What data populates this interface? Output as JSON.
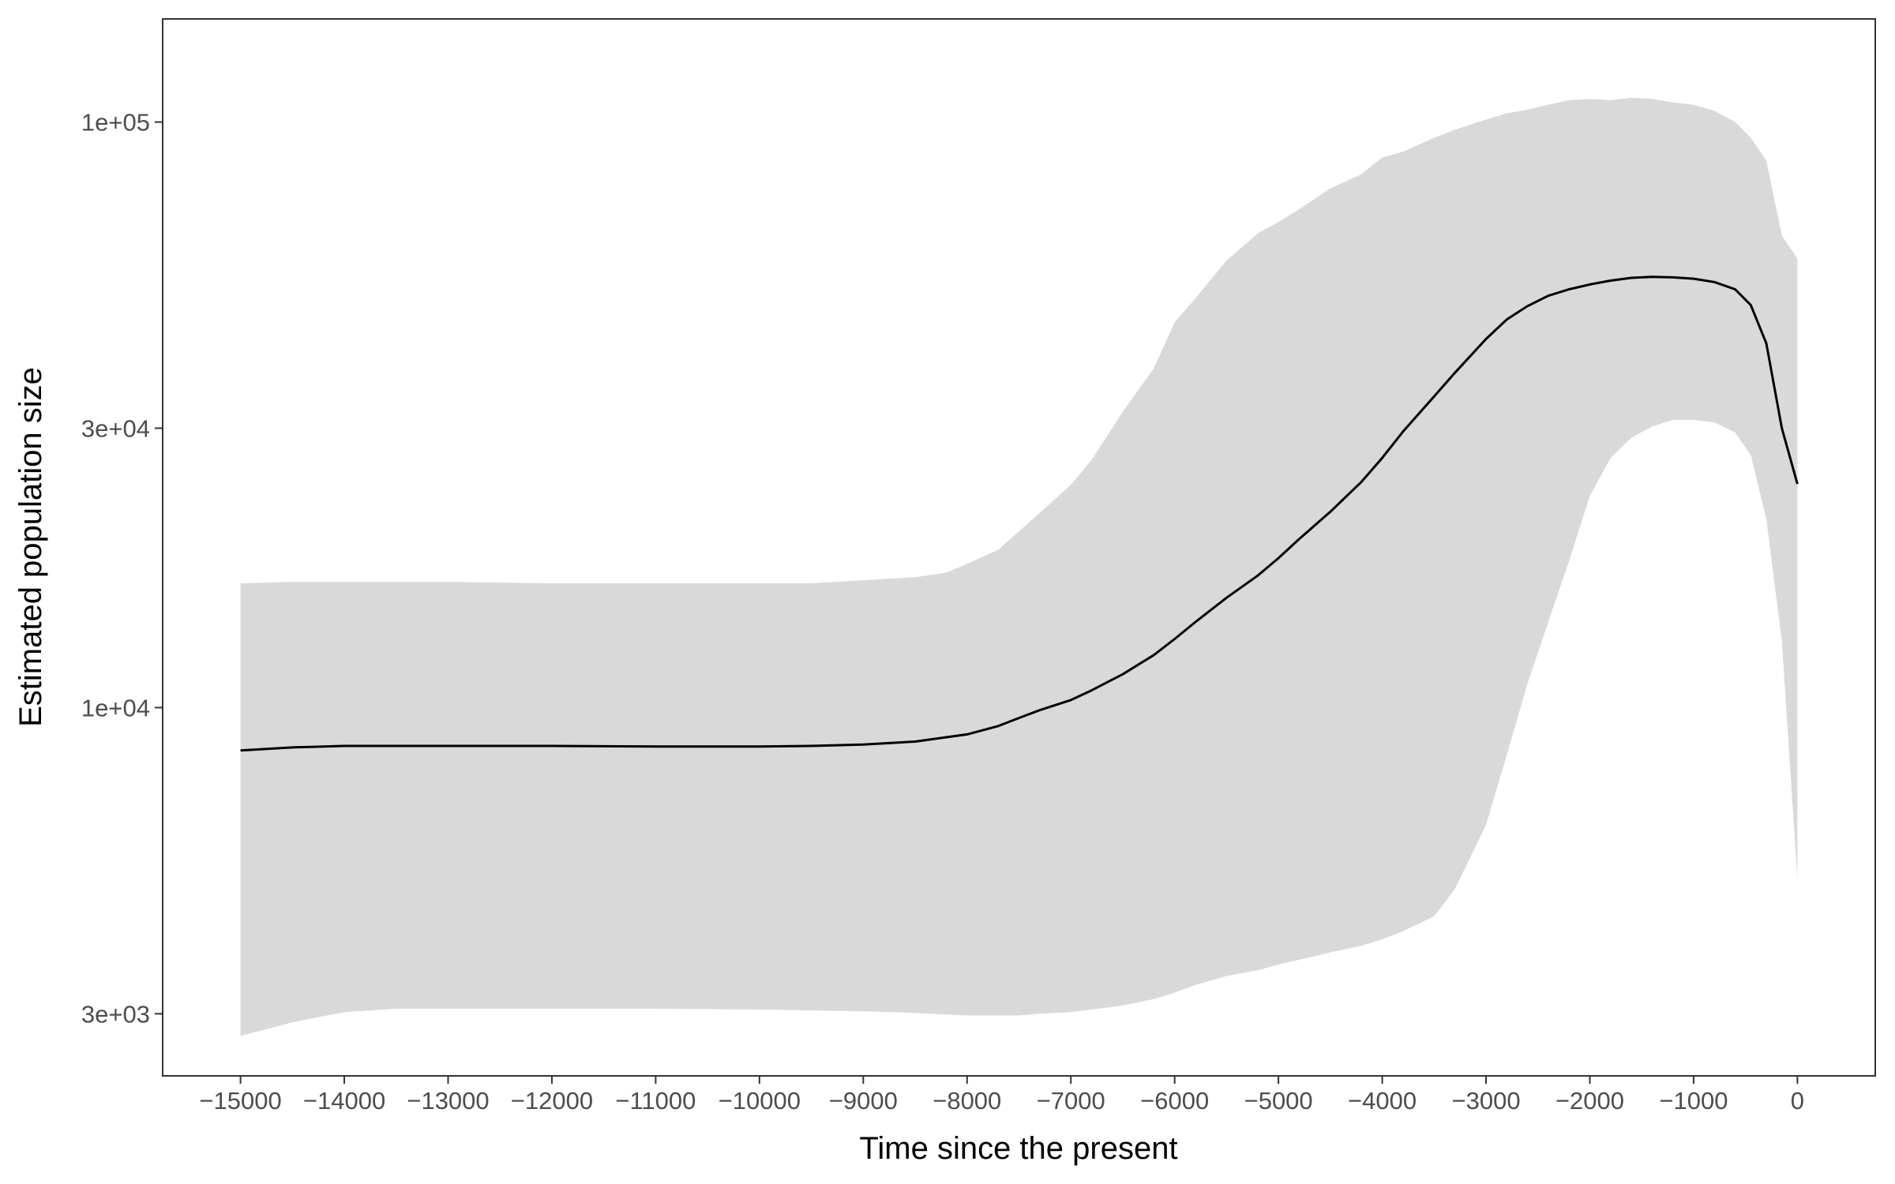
{
  "chart_data": {
    "type": "area",
    "title": "",
    "xlabel": "Time since the present",
    "ylabel": "Estimated population size",
    "xlim": [
      -15750,
      750
    ],
    "ylim": [
      2350,
      150000
    ],
    "yscale": "log",
    "grid": false,
    "legend": "none",
    "x_ticks": [
      -15000,
      -14000,
      -13000,
      -12000,
      -11000,
      -10000,
      -9000,
      -8000,
      -7000,
      -6000,
      -5000,
      -4000,
      -3000,
      -2000,
      -1000,
      0
    ],
    "x_tick_labels": [
      "−15000",
      "−14000",
      "−13000",
      "−12000",
      "−11000",
      "−10000",
      "−9000",
      "−8000",
      "−7000",
      "−6000",
      "−5000",
      "−4000",
      "−3000",
      "−2000",
      "−1000",
      "0"
    ],
    "y_ticks": [
      3000,
      10000,
      30000,
      100000
    ],
    "y_tick_labels": [
      "3e+03",
      "1e+04",
      "3e+04",
      "1e+05"
    ],
    "colors": {
      "band": "#d9d9d9",
      "line": "#000000",
      "frame": "#333333",
      "tick_text": "#4d4d4d"
    },
    "x": [
      -15000,
      -14500,
      -14000,
      -13500,
      -13000,
      -12000,
      -11000,
      -10000,
      -9500,
      -9000,
      -8500,
      -8200,
      -8000,
      -7700,
      -7500,
      -7300,
      -7000,
      -6800,
      -6500,
      -6200,
      -6000,
      -5800,
      -5500,
      -5200,
      -5000,
      -4800,
      -4500,
      -4200,
      -4000,
      -3800,
      -3500,
      -3300,
      -3000,
      -2800,
      -2600,
      -2400,
      -2200,
      -2000,
      -1800,
      -1600,
      -1400,
      -1200,
      -1000,
      -800,
      -600,
      -450,
      -300,
      -150,
      0
    ],
    "median": [
      8450,
      8550,
      8600,
      8600,
      8600,
      8600,
      8580,
      8580,
      8600,
      8650,
      8750,
      8900,
      9000,
      9300,
      9600,
      9900,
      10300,
      10700,
      11400,
      12300,
      13100,
      14000,
      15400,
      16800,
      18000,
      19400,
      21600,
      24300,
      26700,
      29600,
      34000,
      37300,
      42600,
      46000,
      48500,
      50500,
      51800,
      52800,
      53600,
      54200,
      54400,
      54300,
      54000,
      53300,
      51800,
      48700,
      41900,
      30000,
      24100
    ],
    "lower": [
      2750,
      2900,
      3020,
      3060,
      3060,
      3060,
      3060,
      3050,
      3040,
      3030,
      3010,
      2990,
      2980,
      2980,
      2980,
      3000,
      3020,
      3050,
      3100,
      3180,
      3260,
      3360,
      3480,
      3560,
      3640,
      3710,
      3820,
      3920,
      4020,
      4150,
      4400,
      4900,
      6300,
      8300,
      11000,
      14000,
      17800,
      23000,
      26700,
      28900,
      30200,
      31000,
      31000,
      30700,
      29500,
      27000,
      21000,
      13000,
      5100
    ],
    "upper": [
      16300,
      16400,
      16400,
      16400,
      16400,
      16300,
      16300,
      16300,
      16300,
      16500,
      16700,
      17000,
      17600,
      18600,
      20000,
      21500,
      24000,
      26500,
      32000,
      38000,
      45500,
      50000,
      58000,
      64500,
      67500,
      71000,
      77000,
      81500,
      87000,
      89000,
      94000,
      97000,
      101000,
      103500,
      105000,
      107000,
      109000,
      109500,
      109000,
      110000,
      109500,
      108000,
      107000,
      104500,
      100000,
      94000,
      86000,
      64000,
      58500
    ]
  }
}
